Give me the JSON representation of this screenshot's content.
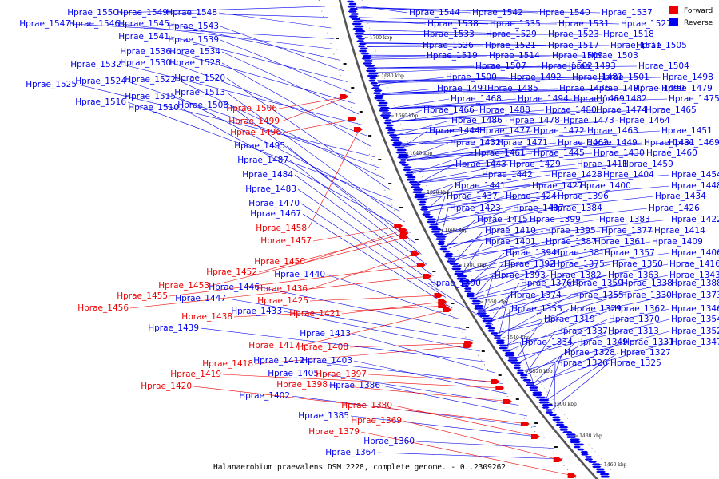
{
  "colors": {
    "forward": "#ee0000",
    "reverse": "#0000ee",
    "backbone": "#555555",
    "ticks": "#111111"
  },
  "legend": [
    {
      "label": "Forward",
      "color": "#ee0000"
    },
    {
      "label": "Reverse",
      "color": "#0000ee"
    }
  ],
  "caption": "Halanaerobium praevalens DSM 2228, complete genome. - 0..2309262",
  "scale_ticks": [
    "1700 kbp",
    "1680 kbp",
    "1660 kbp",
    "1640 kbp",
    "1620 kbp",
    "1600 kbp",
    "1580 kbp",
    "1560 kbp",
    "1540 kbp",
    "1520 kbp",
    "1500 kbp",
    "1480 kbp",
    "1460 kbp"
  ],
  "labels_left_blue": [
    "Hprae_1550",
    "Hprae_1549",
    "Hprae_1548",
    "Hprae_1547",
    "Hprae_1546",
    "Hprae_1545",
    "Hprae_1543",
    "Hprae_1541",
    "Hprae_1539",
    "Hprae_1536",
    "Hprae_1534",
    "Hprae_1532",
    "Hprae_1530",
    "Hprae_1528",
    "Hprae_1525",
    "Hprae_1524",
    "Hprae_1522",
    "Hprae_1520",
    "Hprae_1516",
    "Hprae_1515",
    "Hprae_1513",
    "Hprae_1510",
    "Hprae_1508",
    "Hprae_1495",
    "Hprae_1487",
    "Hprae_1484",
    "Hprae_1483",
    "Hprae_1470",
    "Hprae_1467",
    "Hprae_1440",
    "Hprae_1446",
    "Hprae_1447",
    "Hprae_1433",
    "Hprae_1439",
    "Hprae_1413",
    "Hprae_1412",
    "Hprae_1403",
    "Hprae_1405",
    "Hprae_1386",
    "Hprae_1402",
    "Hprae_1385",
    "Hprae_1360",
    "Hprae_1364"
  ],
  "labels_left_red": [
    "Hprae_1506",
    "Hprae_1499",
    "Hprae_1496",
    "Hprae_1458",
    "Hprae_1457",
    "Hprae_1450",
    "Hprae_1452",
    "Hprae_1453",
    "Hprae_1436",
    "Hprae_1455",
    "Hprae_1456",
    "Hprae_1425",
    "Hprae_1421",
    "Hprae_1438",
    "Hprae_1417",
    "Hprae_1408",
    "Hprae_1418",
    "Hprae_1397",
    "Hprae_1419",
    "Hprae_1398",
    "Hprae_1420",
    "Hprae_1380",
    "Hprae_1369",
    "Hprae_1379"
  ],
  "labels_right": [
    "Hprae_1544",
    "Hprae_1542",
    "Hprae_1540",
    "Hprae_1537",
    "Hprae_1538",
    "Hprae_1535",
    "Hprae_1531",
    "Hprae_1527",
    "Hprae_1533",
    "Hprae_1529",
    "Hprae_1523",
    "Hprae_1518",
    "Hprae_1526",
    "Hprae_1521",
    "Hprae_1517",
    "Hprae_1511",
    "Hprae_1505",
    "Hprae_1519",
    "Hprae_1514",
    "Hprae_1509",
    "Hprae_1503",
    "Hprae_1507",
    "Hprae_1502",
    "Hprae_1493",
    "Hprae_1504",
    "Hprae_1500",
    "Hprae_1492",
    "Hprae_1481",
    "Hprae_1501",
    "Hprae_1498",
    "Hprae_1491",
    "Hprae_1485",
    "Hprae_1476",
    "Hprae_1497",
    "Hprae_1490",
    "Hprae_1479",
    "Hprae_1468",
    "Hprae_1494",
    "Hprae_1489",
    "Hprae_1482",
    "Hprae_1475",
    "Hprae_1466",
    "Hprae_1488",
    "Hprae_1480",
    "Hprae_1474",
    "Hprae_1465",
    "Hprae_1486",
    "Hprae_1478",
    "Hprae_1473",
    "Hprae_1464",
    "Hprae_1444",
    "Hprae_1477",
    "Hprae_1472",
    "Hprae_1463",
    "Hprae_1451",
    "Hprae_1432",
    "Hprae_1471",
    "Hprae_1462",
    "Hprae_1449",
    "Hprae_1431",
    "Hprae_1469",
    "Hprae_1461",
    "Hprae_1445",
    "Hprae_1430",
    "Hprae_1460",
    "Hprae_1443",
    "Hprae_1429",
    "Hprae_1411",
    "Hprae_1459",
    "Hprae_1442",
    "Hprae_1428",
    "Hprae_1404",
    "Hprae_1454",
    "Hprae_1441",
    "Hprae_1427",
    "Hprae_1400",
    "Hprae_1448",
    "Hprae_1437",
    "Hprae_1424",
    "Hprae_1396",
    "Hprae_1434",
    "Hprae_1423",
    "Hprae_1407",
    "Hprae_1384",
    "Hprae_1426",
    "Hprae_1415",
    "Hprae_1399",
    "Hprae_1383",
    "Hprae_1422",
    "Hprae_1410",
    "Hprae_1395",
    "Hprae_1377",
    "Hprae_1414",
    "Hprae_1401",
    "Hprae_1387",
    "Hprae_1361",
    "Hprae_1409",
    "Hprae_1394",
    "Hprae_1381",
    "Hprae_1357",
    "Hprae_1406",
    "Hprae_1392",
    "Hprae_1375",
    "Hprae_1350",
    "Hprae_1416",
    "Hprae_1393",
    "Hprae_1382",
    "Hprae_1363",
    "Hprae_1343",
    "Hprae_1390",
    "Hprae_1376",
    "Hprae_1359",
    "Hprae_1338",
    "Hprae_1388",
    "Hprae_1374",
    "Hprae_1355",
    "Hprae_1330",
    "Hprae_1373",
    "Hprae_1353",
    "Hprae_1329",
    "Hprae_1362",
    "Hprae_1346",
    "Hprae_1319",
    "Hprae_1370",
    "Hprae_1354",
    "Hprae_1337",
    "Hprae_1313",
    "Hprae_1352",
    "Hprae_1334",
    "Hprae_1349",
    "Hprae_1331",
    "Hprae_1347",
    "Hprae_1328",
    "Hprae_1327",
    "Hprae_1326",
    "Hprae_1325"
  ]
}
